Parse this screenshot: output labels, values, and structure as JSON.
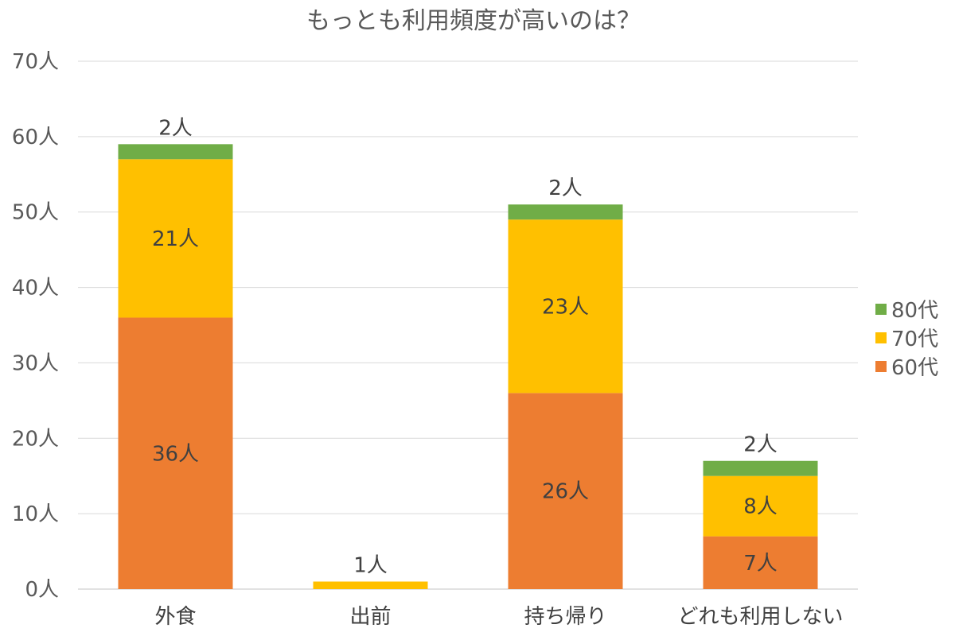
{
  "chart_data": {
    "type": "bar",
    "stacked": true,
    "title": "もっとも利用頻度が高いのは？",
    "categories": [
      "外食",
      "出前",
      "持ち帰り",
      "どれも利用しない"
    ],
    "series": [
      {
        "name": "60代",
        "color": "#ED7D31",
        "values": [
          36,
          0,
          26,
          7
        ],
        "labels": [
          "36人",
          "",
          "26人",
          "7人"
        ]
      },
      {
        "name": "70代",
        "color": "#FFC000",
        "values": [
          21,
          1,
          23,
          8
        ],
        "labels": [
          "21人",
          "1人",
          "23人",
          "8人"
        ]
      },
      {
        "name": "80代",
        "color": "#70AD47",
        "values": [
          2,
          0,
          2,
          2
        ],
        "labels": [
          "2人",
          "",
          "2人",
          "2人"
        ]
      }
    ],
    "yticks": [
      "0人",
      "10人",
      "20人",
      "30人",
      "40人",
      "50人",
      "60人",
      "70人"
    ],
    "ylim": [
      0,
      70
    ],
    "grid": true,
    "legend": {
      "position": "right",
      "order": [
        "80代",
        "70代",
        "60代"
      ]
    }
  }
}
